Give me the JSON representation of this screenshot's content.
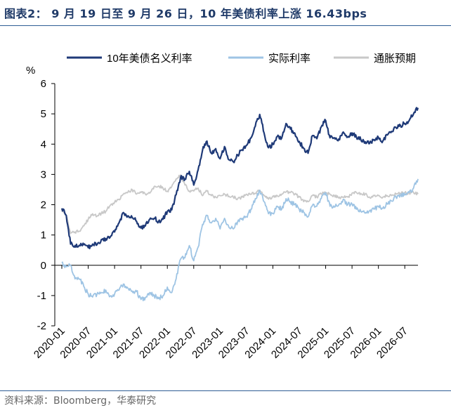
{
  "page": {
    "title": "图表2： 9 月 19 日至 9 月 26 日，10 年美债利率上涨 16.43bps",
    "source": "资料来源：Bloomberg，华泰研究"
  },
  "chart_data": {
    "type": "line",
    "ylabel": "%",
    "ylim": [
      -2,
      6
    ],
    "yticks": [
      6,
      5,
      4,
      3,
      2,
      1,
      0,
      -1,
      -2
    ],
    "xrange": [
      "2020-01",
      "2026-10"
    ],
    "xticks": [
      "2020-01",
      "2020-07",
      "2021-01",
      "2021-07",
      "2022-01",
      "2022-07",
      "2023-01",
      "2023-07",
      "2024-01",
      "2024-07",
      "2025-01",
      "2025-07",
      "2026-01",
      "2026-07"
    ],
    "legend_position": "top",
    "grid": false,
    "colors": {
      "nominal": "#1f3a78",
      "real": "#9ec4e4",
      "breakeven": "#c8c8c8"
    },
    "series": [
      {
        "name": "10年美债名义利率",
        "key": "nominal",
        "points": [
          [
            "2020-01",
            1.88
          ],
          [
            "2020-02",
            1.65
          ],
          [
            "2020-03",
            0.7
          ],
          [
            "2020-04",
            0.65
          ],
          [
            "2020-05",
            0.66
          ],
          [
            "2020-06",
            0.68
          ],
          [
            "2020-07",
            0.58
          ],
          [
            "2020-08",
            0.7
          ],
          [
            "2020-09",
            0.68
          ],
          [
            "2020-10",
            0.85
          ],
          [
            "2020-11",
            0.88
          ],
          [
            "2020-12",
            0.93
          ],
          [
            "2021-01",
            1.1
          ],
          [
            "2021-02",
            1.4
          ],
          [
            "2021-03",
            1.74
          ],
          [
            "2021-04",
            1.63
          ],
          [
            "2021-05",
            1.58
          ],
          [
            "2021-06",
            1.45
          ],
          [
            "2021-07",
            1.23
          ],
          [
            "2021-08",
            1.3
          ],
          [
            "2021-09",
            1.52
          ],
          [
            "2021-10",
            1.55
          ],
          [
            "2021-11",
            1.45
          ],
          [
            "2021-12",
            1.52
          ],
          [
            "2022-01",
            1.78
          ],
          [
            "2022-02",
            1.83
          ],
          [
            "2022-03",
            2.33
          ],
          [
            "2022-04",
            2.9
          ],
          [
            "2022-05",
            2.85
          ],
          [
            "2022-06",
            3.1
          ],
          [
            "2022-07",
            2.65
          ],
          [
            "2022-08",
            3.15
          ],
          [
            "2022-09",
            3.8
          ],
          [
            "2022-10",
            4.1
          ],
          [
            "2022-11",
            3.7
          ],
          [
            "2022-12",
            3.85
          ],
          [
            "2023-01",
            3.52
          ],
          [
            "2023-02",
            3.92
          ],
          [
            "2023-03",
            3.48
          ],
          [
            "2023-04",
            3.42
          ],
          [
            "2023-05",
            3.64
          ],
          [
            "2023-06",
            3.81
          ],
          [
            "2023-07",
            3.96
          ],
          [
            "2023-08",
            4.2
          ],
          [
            "2023-09",
            4.59
          ],
          [
            "2023-10",
            4.98
          ],
          [
            "2023-11",
            4.37
          ],
          [
            "2023-12",
            3.88
          ],
          [
            "2024-01",
            3.99
          ],
          [
            "2024-02",
            4.25
          ],
          [
            "2024-03",
            4.2
          ],
          [
            "2024-04",
            4.68
          ],
          [
            "2024-05",
            4.5
          ],
          [
            "2024-06",
            4.36
          ],
          [
            "2024-07",
            4.09
          ],
          [
            "2024-08",
            3.86
          ],
          [
            "2024-09",
            3.7
          ],
          [
            "2024-10",
            4.28
          ],
          [
            "2024-11",
            4.18
          ],
          [
            "2024-12",
            4.57
          ],
          [
            "2025-01",
            4.78
          ],
          [
            "2025-02",
            4.21
          ],
          [
            "2025-03",
            4.21
          ],
          [
            "2025-04",
            4.17
          ],
          [
            "2025-05",
            4.4
          ],
          [
            "2025-06",
            4.23
          ],
          [
            "2025-07",
            4.37
          ],
          [
            "2025-08",
            4.23
          ],
          [
            "2025-09",
            4.15
          ],
          [
            "2025-10",
            4.08
          ],
          [
            "2025-11",
            4.02
          ],
          [
            "2025-12",
            4.15
          ],
          [
            "2026-01",
            4.22
          ],
          [
            "2026-02",
            4.1
          ],
          [
            "2026-03",
            4.3
          ],
          [
            "2026-04",
            4.42
          ],
          [
            "2026-05",
            4.55
          ],
          [
            "2026-06",
            4.62
          ],
          [
            "2026-07",
            4.68
          ],
          [
            "2026-08",
            4.78
          ],
          [
            "2026-09",
            5.0
          ],
          [
            "2026-10",
            5.2
          ]
        ]
      },
      {
        "name": "实际利率",
        "key": "real",
        "points": [
          [
            "2020-01",
            0.08
          ],
          [
            "2020-02",
            -0.05
          ],
          [
            "2020-03",
            0.0
          ],
          [
            "2020-04",
            -0.45
          ],
          [
            "2020-05",
            -0.45
          ],
          [
            "2020-06",
            -0.7
          ],
          [
            "2020-07",
            -0.95
          ],
          [
            "2020-08",
            -1.05
          ],
          [
            "2020-09",
            -0.95
          ],
          [
            "2020-10",
            -0.9
          ],
          [
            "2020-11",
            -0.82
          ],
          [
            "2020-12",
            -1.02
          ],
          [
            "2021-01",
            -0.95
          ],
          [
            "2021-02",
            -0.82
          ],
          [
            "2021-03",
            -0.62
          ],
          [
            "2021-04",
            -0.75
          ],
          [
            "2021-05",
            -0.85
          ],
          [
            "2021-06",
            -0.87
          ],
          [
            "2021-07",
            -1.13
          ],
          [
            "2021-08",
            -1.07
          ],
          [
            "2021-09",
            -0.9
          ],
          [
            "2021-10",
            -1.0
          ],
          [
            "2021-11",
            -1.1
          ],
          [
            "2021-12",
            -1.0
          ],
          [
            "2022-01",
            -0.72
          ],
          [
            "2022-02",
            -0.9
          ],
          [
            "2022-03",
            -0.45
          ],
          [
            "2022-04",
            0.2
          ],
          [
            "2022-05",
            0.25
          ],
          [
            "2022-06",
            0.65
          ],
          [
            "2022-07",
            0.15
          ],
          [
            "2022-08",
            0.6
          ],
          [
            "2022-09",
            1.35
          ],
          [
            "2022-10",
            1.65
          ],
          [
            "2022-11",
            1.4
          ],
          [
            "2022-12",
            1.55
          ],
          [
            "2023-01",
            1.2
          ],
          [
            "2023-02",
            1.55
          ],
          [
            "2023-03",
            1.25
          ],
          [
            "2023-04",
            1.2
          ],
          [
            "2023-05",
            1.45
          ],
          [
            "2023-06",
            1.55
          ],
          [
            "2023-07",
            1.6
          ],
          [
            "2023-08",
            1.85
          ],
          [
            "2023-09",
            2.2
          ],
          [
            "2023-10",
            2.48
          ],
          [
            "2023-11",
            2.1
          ],
          [
            "2023-12",
            1.7
          ],
          [
            "2024-01",
            1.72
          ],
          [
            "2024-02",
            1.95
          ],
          [
            "2024-03",
            1.85
          ],
          [
            "2024-04",
            2.2
          ],
          [
            "2024-05",
            2.1
          ],
          [
            "2024-06",
            2.0
          ],
          [
            "2024-07",
            1.85
          ],
          [
            "2024-08",
            1.75
          ],
          [
            "2024-09",
            1.6
          ],
          [
            "2024-10",
            1.98
          ],
          [
            "2024-11",
            1.95
          ],
          [
            "2024-12",
            2.2
          ],
          [
            "2025-01",
            2.4
          ],
          [
            "2025-02",
            1.95
          ],
          [
            "2025-03",
            1.92
          ],
          [
            "2025-04",
            2.0
          ],
          [
            "2025-05",
            2.18
          ],
          [
            "2025-06",
            2.0
          ],
          [
            "2025-07",
            2.02
          ],
          [
            "2025-08",
            1.85
          ],
          [
            "2025-09",
            1.78
          ],
          [
            "2025-10",
            1.72
          ],
          [
            "2025-11",
            1.8
          ],
          [
            "2025-12",
            1.85
          ],
          [
            "2026-01",
            1.95
          ],
          [
            "2026-02",
            1.88
          ],
          [
            "2026-03",
            2.02
          ],
          [
            "2026-04",
            2.12
          ],
          [
            "2026-05",
            2.25
          ],
          [
            "2026-06",
            2.3
          ],
          [
            "2026-07",
            2.32
          ],
          [
            "2026-08",
            2.4
          ],
          [
            "2026-09",
            2.55
          ],
          [
            "2026-10",
            2.85
          ]
        ]
      },
      {
        "name": "通胀预期",
        "key": "breakeven",
        "points": [
          [
            "2020-01",
            1.8
          ],
          [
            "2020-02",
            1.65
          ],
          [
            "2020-03",
            1.05
          ],
          [
            "2020-04",
            1.1
          ],
          [
            "2020-05",
            1.12
          ],
          [
            "2020-06",
            1.3
          ],
          [
            "2020-07",
            1.52
          ],
          [
            "2020-08",
            1.7
          ],
          [
            "2020-09",
            1.62
          ],
          [
            "2020-10",
            1.72
          ],
          [
            "2020-11",
            1.78
          ],
          [
            "2020-12",
            1.98
          ],
          [
            "2021-01",
            2.08
          ],
          [
            "2021-02",
            2.18
          ],
          [
            "2021-03",
            2.35
          ],
          [
            "2021-04",
            2.4
          ],
          [
            "2021-05",
            2.5
          ],
          [
            "2021-06",
            2.35
          ],
          [
            "2021-07",
            2.4
          ],
          [
            "2021-08",
            2.35
          ],
          [
            "2021-09",
            2.38
          ],
          [
            "2021-10",
            2.6
          ],
          [
            "2021-11",
            2.62
          ],
          [
            "2021-12",
            2.55
          ],
          [
            "2022-01",
            2.45
          ],
          [
            "2022-02",
            2.6
          ],
          [
            "2022-03",
            2.85
          ],
          [
            "2022-04",
            2.98
          ],
          [
            "2022-05",
            2.65
          ],
          [
            "2022-06",
            2.45
          ],
          [
            "2022-07",
            2.45
          ],
          [
            "2022-08",
            2.55
          ],
          [
            "2022-09",
            2.3
          ],
          [
            "2022-10",
            2.45
          ],
          [
            "2022-11",
            2.3
          ],
          [
            "2022-12",
            2.25
          ],
          [
            "2023-01",
            2.3
          ],
          [
            "2023-02",
            2.35
          ],
          [
            "2023-03",
            2.28
          ],
          [
            "2023-04",
            2.25
          ],
          [
            "2023-05",
            2.2
          ],
          [
            "2023-06",
            2.25
          ],
          [
            "2023-07",
            2.35
          ],
          [
            "2023-08",
            2.35
          ],
          [
            "2023-09",
            2.38
          ],
          [
            "2023-10",
            2.48
          ],
          [
            "2023-11",
            2.3
          ],
          [
            "2023-12",
            2.18
          ],
          [
            "2024-01",
            2.28
          ],
          [
            "2024-02",
            2.3
          ],
          [
            "2024-03",
            2.35
          ],
          [
            "2024-04",
            2.42
          ],
          [
            "2024-05",
            2.4
          ],
          [
            "2024-06",
            2.35
          ],
          [
            "2024-07",
            2.25
          ],
          [
            "2024-08",
            2.1
          ],
          [
            "2024-09",
            2.1
          ],
          [
            "2024-10",
            2.3
          ],
          [
            "2024-11",
            2.25
          ],
          [
            "2024-12",
            2.35
          ],
          [
            "2025-01",
            2.4
          ],
          [
            "2025-02",
            2.35
          ],
          [
            "2025-03",
            2.3
          ],
          [
            "2025-04",
            2.22
          ],
          [
            "2025-05",
            2.25
          ],
          [
            "2025-06",
            2.25
          ],
          [
            "2025-07",
            2.38
          ],
          [
            "2025-08",
            2.4
          ],
          [
            "2025-09",
            2.37
          ],
          [
            "2025-10",
            2.35
          ],
          [
            "2025-11",
            2.25
          ],
          [
            "2025-12",
            2.3
          ],
          [
            "2026-01",
            2.3
          ],
          [
            "2026-02",
            2.25
          ],
          [
            "2026-03",
            2.3
          ],
          [
            "2026-04",
            2.3
          ],
          [
            "2026-05",
            2.35
          ],
          [
            "2026-06",
            2.38
          ],
          [
            "2026-07",
            2.4
          ],
          [
            "2026-08",
            2.38
          ],
          [
            "2026-09",
            2.4
          ],
          [
            "2026-10",
            2.35
          ]
        ]
      }
    ]
  }
}
